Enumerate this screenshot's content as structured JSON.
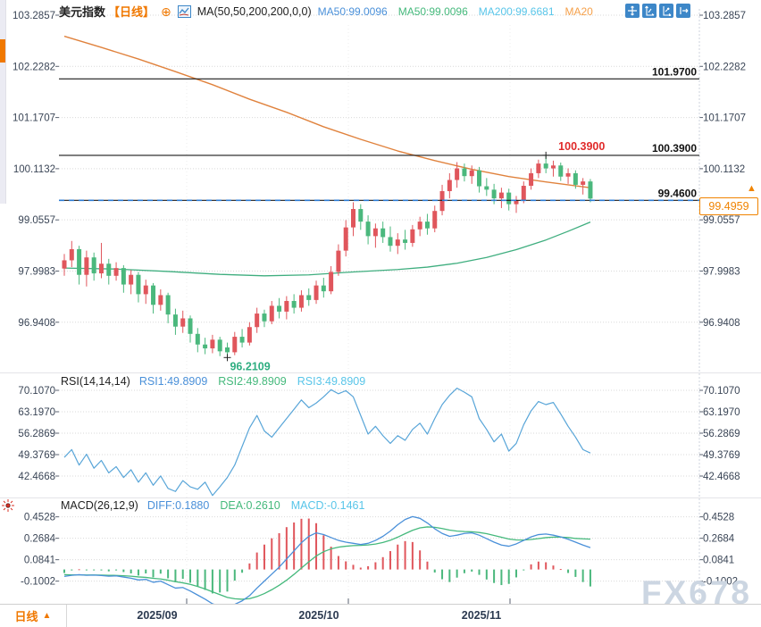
{
  "header": {
    "title": "美元指数",
    "period_tag": "【日线】",
    "add_icon": "⊕",
    "ma_settings": "MA(50,50,200,200,0,0)",
    "ma_values": [
      {
        "label": "MA50:99.0096",
        "color": "#4a90d9"
      },
      {
        "label": "MA50:99.0096",
        "color": "#45b97c"
      },
      {
        "label": "MA200:99.6681",
        "color": "#58c5e9"
      },
      {
        "label": "MA20",
        "color": "#f5a04a"
      }
    ]
  },
  "toolbar": {
    "icons": [
      "crosshair-move-icon",
      "fit-vertical-axis-icon",
      "fit-horizontal-axis-icon",
      "goto-latest-icon"
    ]
  },
  "price_panel": {
    "axis": [
      "103.2857",
      "102.2282",
      "101.1707",
      "100.1132",
      "99.0557",
      "97.9983",
      "96.9408"
    ],
    "hlines": [
      {
        "label": "101.9700",
        "value": 101.97,
        "style": "solid"
      },
      {
        "label": "100.3900",
        "value": 100.39,
        "style": "solid"
      },
      {
        "label": "99.4600",
        "value": 99.46,
        "style": "dashed-blue"
      }
    ],
    "high_annotation": {
      "text": "100.3900",
      "value": 100.39,
      "index": 66,
      "color": "#e02a2a"
    },
    "low_annotation": {
      "text": "96.2109",
      "value": 96.2109,
      "index": 23,
      "color": "#2fae81"
    },
    "current_price": "99.4959",
    "current_arrow": "▲"
  },
  "rsi_panel": {
    "name": "RSI(14,14,14)",
    "values": [
      {
        "label": "RSI1:49.8909",
        "color": "#4a90d9"
      },
      {
        "label": "RSI2:49.8909",
        "color": "#45b97c"
      },
      {
        "label": "RSI3:49.8909",
        "color": "#58c5e9"
      }
    ],
    "axis": [
      "70.1070",
      "63.1970",
      "56.2869",
      "49.3769",
      "42.4668"
    ]
  },
  "macd_panel": {
    "name": "MACD(26,12,9)",
    "values": [
      {
        "label": "DIFF:0.1880",
        "color": "#4a90d9"
      },
      {
        "label": "DEA:0.2610",
        "color": "#45b97c"
      },
      {
        "label": "MACD:-0.1461",
        "color": "#58c5e9"
      }
    ],
    "axis": [
      "0.4528",
      "0.2684",
      "0.0841",
      "-0.1002"
    ]
  },
  "bottom_bar": {
    "period_label": "日线",
    "period_arrow": "▲",
    "dates": [
      "2025/09",
      "2025/10",
      "2025/11"
    ]
  },
  "watermark": "FX678",
  "colors": {
    "up": "#e0565c",
    "down": "#4bb87d",
    "ma_orange": "#e0823d",
    "ma_green": "#3fae7f",
    "rsi_line": "#58a5d8",
    "diff_line": "#4a90d9",
    "dea_line": "#45b97c",
    "grid": "#d9d9d9",
    "axis_text": "#3a4556",
    "accent": "#f08300"
  },
  "chart_data": {
    "type": "candlestick",
    "title": "美元指数 日线 (US Dollar Index, daily)",
    "price_axis_range": [
      96.2,
      103.2857
    ],
    "candles_ohlc": [
      [
        98.05,
        98.35,
        97.9,
        98.22
      ],
      [
        98.22,
        98.62,
        98.08,
        98.45
      ],
      [
        98.45,
        98.52,
        97.72,
        97.92
      ],
      [
        97.92,
        98.42,
        97.68,
        98.28
      ],
      [
        98.28,
        98.38,
        97.8,
        97.95
      ],
      [
        97.95,
        98.58,
        97.85,
        98.15
      ],
      [
        98.15,
        98.25,
        97.72,
        97.9
      ],
      [
        97.9,
        98.18,
        97.8,
        98.06
      ],
      [
        98.06,
        98.12,
        97.55,
        97.72
      ],
      [
        97.72,
        98.02,
        97.52,
        97.92
      ],
      [
        97.92,
        97.98,
        97.35,
        97.52
      ],
      [
        97.52,
        97.82,
        97.32,
        97.7
      ],
      [
        97.7,
        97.75,
        97.12,
        97.3
      ],
      [
        97.3,
        97.62,
        97.18,
        97.5
      ],
      [
        97.5,
        97.55,
        96.92,
        97.1
      ],
      [
        97.1,
        97.22,
        96.68,
        96.85
      ],
      [
        96.85,
        97.18,
        96.72,
        97.02
      ],
      [
        97.02,
        97.08,
        96.52,
        96.7
      ],
      [
        96.7,
        96.82,
        96.32,
        96.48
      ],
      [
        96.48,
        96.62,
        96.28,
        96.4
      ],
      [
        96.4,
        96.68,
        96.3,
        96.58
      ],
      [
        96.58,
        96.64,
        96.24,
        96.34
      ],
      [
        96.42,
        96.52,
        96.2109,
        96.32
      ],
      [
        96.32,
        96.74,
        96.26,
        96.64
      ],
      [
        96.64,
        96.8,
        96.42,
        96.52
      ],
      [
        96.52,
        96.94,
        96.46,
        96.84
      ],
      [
        96.84,
        97.24,
        96.72,
        97.12
      ],
      [
        97.12,
        97.2,
        96.84,
        96.96
      ],
      [
        96.96,
        97.38,
        96.9,
        97.28
      ],
      [
        97.28,
        97.44,
        97.02,
        97.16
      ],
      [
        97.16,
        97.48,
        97.0,
        97.38
      ],
      [
        97.38,
        97.52,
        97.12,
        97.24
      ],
      [
        97.24,
        97.6,
        97.16,
        97.5
      ],
      [
        97.5,
        97.64,
        97.28,
        97.4
      ],
      [
        97.4,
        97.8,
        97.32,
        97.7
      ],
      [
        97.7,
        97.86,
        97.45,
        97.58
      ],
      [
        97.58,
        98.1,
        97.52,
        97.98
      ],
      [
        97.98,
        98.55,
        97.9,
        98.42
      ],
      [
        98.42,
        99.05,
        98.3,
        98.9
      ],
      [
        98.9,
        99.42,
        98.72,
        99.28
      ],
      [
        99.28,
        99.38,
        98.85,
        99.02
      ],
      [
        99.02,
        99.15,
        98.55,
        98.72
      ],
      [
        98.72,
        98.98,
        98.48,
        98.88
      ],
      [
        98.88,
        99.02,
        98.58,
        98.7
      ],
      [
        98.7,
        98.92,
        98.4,
        98.52
      ],
      [
        98.52,
        98.78,
        98.35,
        98.65
      ],
      [
        98.65,
        98.85,
        98.44,
        98.58
      ],
      [
        98.58,
        98.95,
        98.5,
        98.86
      ],
      [
        98.86,
        99.12,
        98.72,
        99.02
      ],
      [
        99.02,
        99.18,
        98.75,
        98.88
      ],
      [
        98.88,
        99.35,
        98.8,
        99.24
      ],
      [
        99.24,
        99.78,
        99.15,
        99.65
      ],
      [
        99.65,
        100.02,
        99.5,
        99.88
      ],
      [
        99.88,
        100.25,
        99.72,
        100.12
      ],
      [
        100.12,
        100.22,
        99.85,
        99.96
      ],
      [
        99.96,
        100.18,
        99.8,
        100.08
      ],
      [
        100.08,
        100.15,
        99.62,
        99.75
      ],
      [
        99.75,
        99.92,
        99.55,
        99.68
      ],
      [
        99.68,
        99.8,
        99.38,
        99.5
      ],
      [
        99.5,
        99.72,
        99.3,
        99.62
      ],
      [
        99.62,
        99.7,
        99.25,
        99.38
      ],
      [
        99.38,
        99.55,
        99.2,
        99.46
      ],
      [
        99.46,
        99.85,
        99.4,
        99.76
      ],
      [
        99.76,
        100.12,
        99.68,
        100.02
      ],
      [
        100.02,
        100.3,
        99.92,
        100.22
      ],
      [
        100.22,
        100.39,
        100.02,
        100.12
      ],
      [
        100.12,
        100.28,
        99.95,
        100.18
      ],
      [
        100.18,
        100.24,
        99.86,
        99.95
      ],
      [
        99.95,
        100.12,
        99.8,
        100.02
      ],
      [
        100.02,
        100.08,
        99.7,
        99.78
      ],
      [
        99.78,
        99.92,
        99.58,
        99.85
      ],
      [
        99.85,
        99.9,
        99.42,
        99.4959
      ]
    ],
    "ma200_waypoints": [
      [
        1,
        102.85
      ],
      [
        6,
        102.62
      ],
      [
        11,
        102.38
      ],
      [
        16,
        102.12
      ],
      [
        21,
        101.85
      ],
      [
        26,
        101.55
      ],
      [
        31,
        101.28
      ],
      [
        36,
        100.98
      ],
      [
        41,
        100.72
      ],
      [
        46,
        100.48
      ],
      [
        51,
        100.28
      ],
      [
        56,
        100.1
      ],
      [
        61,
        99.95
      ],
      [
        66,
        99.84
      ],
      [
        72,
        99.72
      ]
    ],
    "ma50_waypoints": [
      [
        1,
        98.06
      ],
      [
        8,
        98.04
      ],
      [
        15,
        97.99
      ],
      [
        22,
        97.93
      ],
      [
        28,
        97.9
      ],
      [
        34,
        97.92
      ],
      [
        40,
        97.98
      ],
      [
        46,
        98.03
      ],
      [
        50,
        98.08
      ],
      [
        54,
        98.16
      ],
      [
        58,
        98.28
      ],
      [
        62,
        98.44
      ],
      [
        66,
        98.64
      ],
      [
        69,
        98.82
      ],
      [
        72,
        99.01
      ]
    ],
    "rsi": [
      48.5,
      51,
      46,
      49.5,
      45,
      47.5,
      43.5,
      45.5,
      42,
      44.5,
      40.5,
      43.5,
      39.5,
      42.5,
      38.5,
      37.5,
      41,
      39,
      38.2,
      40.5,
      36.2,
      39,
      42,
      46,
      52,
      58,
      62,
      57,
      55,
      58,
      61,
      64,
      67,
      64.5,
      66,
      68,
      70.3,
      69,
      70,
      68,
      62,
      56,
      58.5,
      55.5,
      53,
      55.5,
      54,
      57.5,
      59.5,
      56,
      61,
      65.5,
      68.5,
      70.8,
      69.5,
      68,
      61,
      57.5,
      53.5,
      56,
      50.5,
      53,
      59,
      63.5,
      66.5,
      65.5,
      66.2,
      62.5,
      58.5,
      55,
      51,
      49.89
    ],
    "rsi_range": [
      70.107,
      42.4668
    ],
    "macd_diff": [
      -0.06,
      -0.05,
      -0.045,
      -0.05,
      -0.048,
      -0.052,
      -0.058,
      -0.055,
      -0.065,
      -0.075,
      -0.09,
      -0.085,
      -0.11,
      -0.1,
      -0.13,
      -0.16,
      -0.155,
      -0.185,
      -0.22,
      -0.255,
      -0.295,
      -0.315,
      -0.335,
      -0.3,
      -0.27,
      -0.225,
      -0.16,
      -0.1,
      -0.04,
      0.02,
      0.09,
      0.16,
      0.23,
      0.285,
      0.315,
      0.3,
      0.275,
      0.25,
      0.235,
      0.225,
      0.215,
      0.225,
      0.25,
      0.285,
      0.33,
      0.385,
      0.43,
      0.455,
      0.44,
      0.4,
      0.35,
      0.31,
      0.285,
      0.295,
      0.31,
      0.315,
      0.295,
      0.265,
      0.235,
      0.21,
      0.2,
      0.22,
      0.25,
      0.28,
      0.3,
      0.305,
      0.295,
      0.28,
      0.26,
      0.235,
      0.21,
      0.188
    ],
    "macd_dea": [
      -0.045,
      -0.046,
      -0.046,
      -0.047,
      -0.047,
      -0.048,
      -0.05,
      -0.051,
      -0.054,
      -0.058,
      -0.064,
      -0.068,
      -0.076,
      -0.082,
      -0.092,
      -0.105,
      -0.115,
      -0.128,
      -0.146,
      -0.167,
      -0.192,
      -0.216,
      -0.24,
      -0.252,
      -0.256,
      -0.251,
      -0.233,
      -0.207,
      -0.174,
      -0.136,
      -0.092,
      -0.042,
      0.012,
      0.066,
      0.116,
      0.153,
      0.177,
      0.192,
      0.2,
      0.205,
      0.207,
      0.211,
      0.219,
      0.232,
      0.251,
      0.278,
      0.308,
      0.337,
      0.358,
      0.366,
      0.363,
      0.352,
      0.339,
      0.33,
      0.326,
      0.324,
      0.318,
      0.308,
      0.293,
      0.277,
      0.262,
      0.254,
      0.253,
      0.258,
      0.266,
      0.274,
      0.278,
      0.278,
      0.275,
      0.267,
      0.264,
      0.261
    ],
    "legend": [
      "MA50",
      "MA200",
      "RSI1/2/3",
      "DIFF",
      "DEA",
      "MACD histogram"
    ]
  }
}
